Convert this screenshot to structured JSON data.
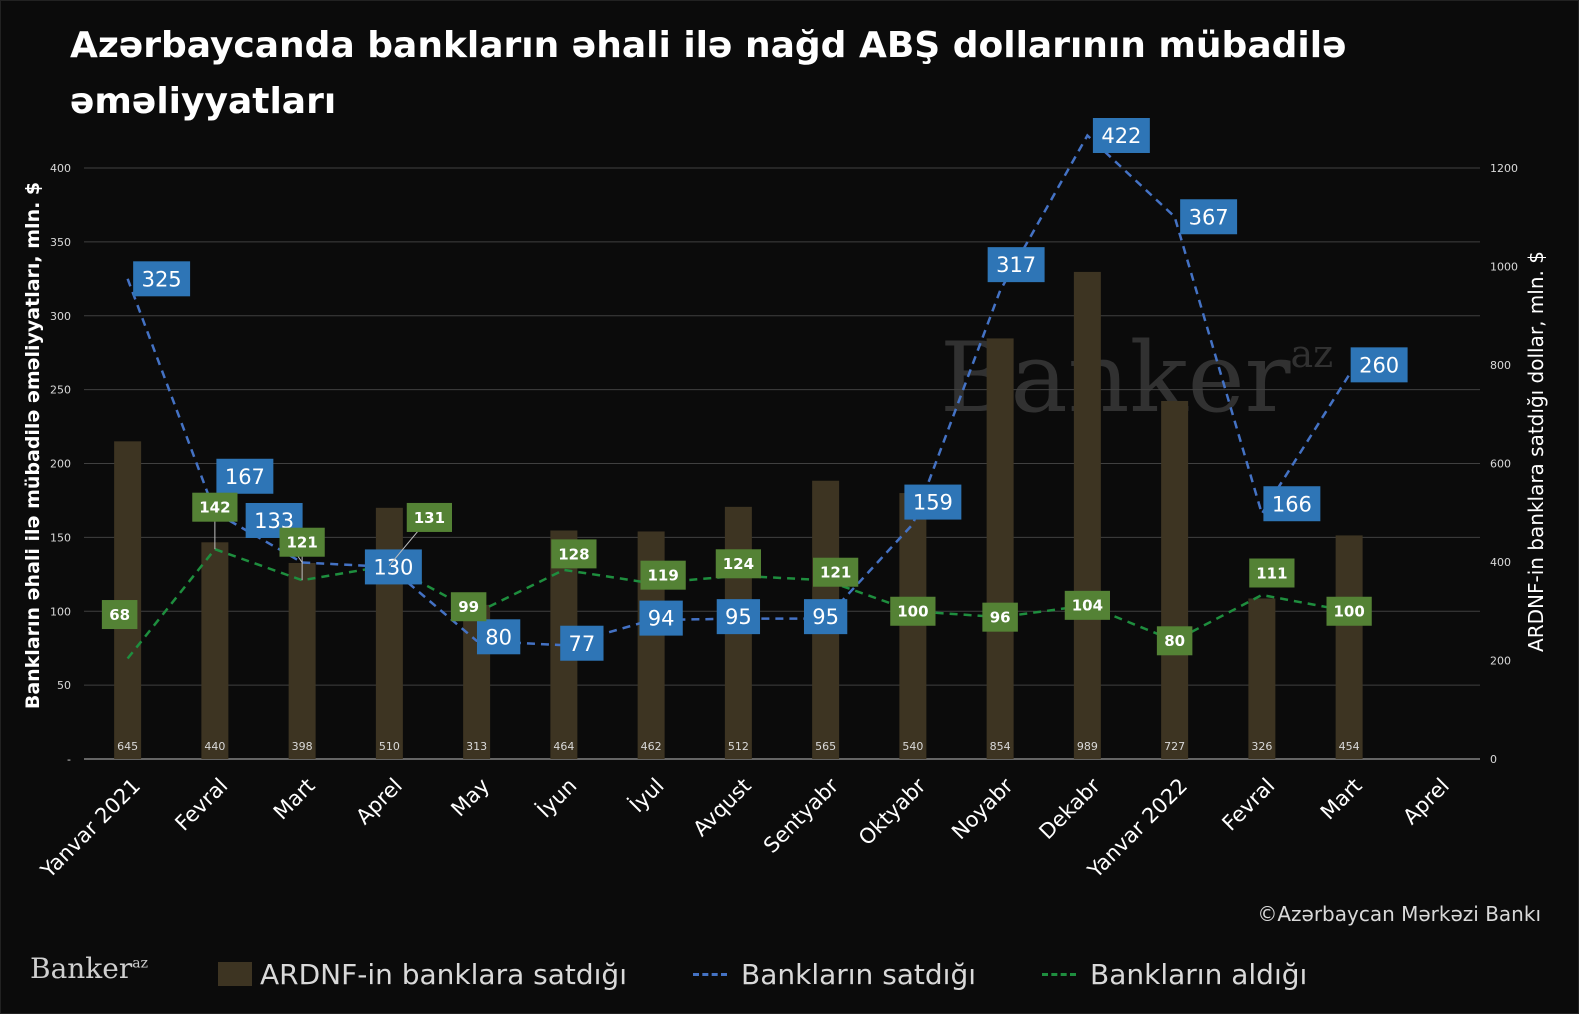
{
  "title": "Azərbaycanda bankların əhali ilə nağd ABŞ dollarının mübadilə əməliyyatları",
  "source": "©Azərbaycan Mərkəzi Bankı",
  "logo_text": "Banker",
  "logo_sup": "az",
  "colors": {
    "background": "#0b0b0b",
    "bars": "#3d3422",
    "sold_line": "#4472c4",
    "sold_label_bg": "#2e75b6",
    "bought_line": "#1e8e3e",
    "bought_label_bg": "#548235",
    "grid": "#404040"
  },
  "chart_data": {
    "type": "bar",
    "categories": [
      "Yanvar 2021",
      "Fevral",
      "Mart",
      "Aprel",
      "May",
      "İyun",
      "İyul",
      "Avqust",
      "Sentyabr",
      "Oktyabr",
      "Noyabr",
      "Dekabr",
      "Yanvar 2022",
      "Fevral",
      "Mart",
      "Aprel"
    ],
    "ylabel": "Bankların əhali ilə mübadilə əməliyyatları, mln. $",
    "y2label": "ARDNF-in banklara satdığı dollar, mln. $",
    "ylim": [
      0,
      400
    ],
    "y2lim": [
      0,
      1200
    ],
    "yticks": [
      "-",
      "50",
      "100",
      "150",
      "200",
      "250",
      "300",
      "350",
      "400"
    ],
    "y2ticks": [
      "0",
      "200",
      "400",
      "600",
      "800",
      "1000",
      "1200"
    ],
    "grid": true,
    "legend": "bottom",
    "series": [
      {
        "name": "ARDNF-in  banklara satdığı",
        "type": "bar",
        "axis": "right",
        "values": [
          645,
          440,
          398,
          510,
          313,
          464,
          462,
          512,
          565,
          540,
          854,
          989,
          727,
          326,
          454,
          null
        ]
      },
      {
        "name": "Bankların satdığı",
        "type": "line",
        "style": "dashed",
        "axis": "left",
        "values": [
          325,
          167,
          133,
          130,
          80,
          77,
          94,
          95,
          95,
          159,
          317,
          422,
          367,
          166,
          260,
          null
        ]
      },
      {
        "name": "Bankların aldığı",
        "type": "line",
        "style": "dashed",
        "axis": "left",
        "values": [
          68,
          142,
          121,
          131,
          99,
          128,
          119,
          124,
          121,
          100,
          96,
          104,
          80,
          111,
          100,
          null
        ]
      }
    ]
  }
}
